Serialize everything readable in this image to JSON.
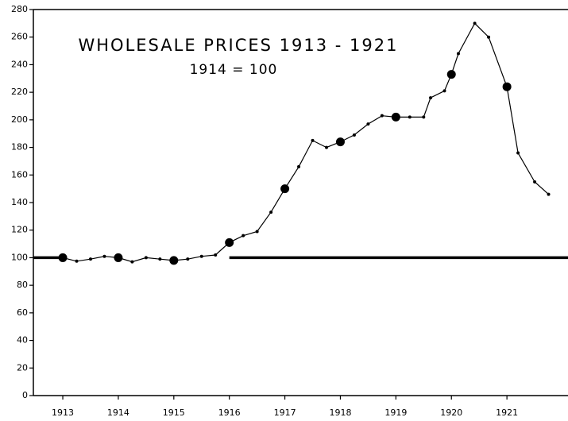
{
  "chart_data": {
    "type": "line",
    "title": "WHOLESALE PRICES 1913 - 1921",
    "subtitle": "1914 = 100",
    "x": [
      1913,
      1913.25,
      1913.5,
      1913.75,
      1914,
      1914.25,
      1914.5,
      1914.75,
      1915,
      1915.25,
      1915.5,
      1915.75,
      1916,
      1916.25,
      1916.5,
      1916.75,
      1917,
      1917.25,
      1917.5,
      1917.75,
      1918,
      1918.25,
      1918.5,
      1918.75,
      1919,
      1919.25,
      1919.5,
      1919.625,
      1919.875,
      1920,
      1920.125,
      1920.42,
      1920.67,
      1921,
      1921.2,
      1921.5,
      1921.75
    ],
    "y": [
      100,
      97.5,
      99,
      101,
      100,
      97,
      100,
      99,
      98,
      99,
      101,
      102,
      111,
      116,
      119,
      133,
      150,
      166,
      185,
      180,
      184,
      189,
      197,
      203,
      202,
      202,
      202,
      216,
      221,
      233,
      248,
      270,
      260,
      224,
      176,
      155,
      146
    ],
    "color": "#000000",
    "xlim": [
      1912.47,
      1922.1
    ],
    "ylim": [
      0,
      280
    ],
    "xticks": [
      1913,
      1914,
      1915,
      1916,
      1917,
      1918,
      1919,
      1920,
      1921
    ],
    "yticks": [
      0,
      20,
      40,
      60,
      80,
      100,
      120,
      140,
      160,
      180,
      200,
      220,
      240,
      260,
      280
    ],
    "reference_line": {
      "y": 100,
      "x_start": 1916
    }
  }
}
